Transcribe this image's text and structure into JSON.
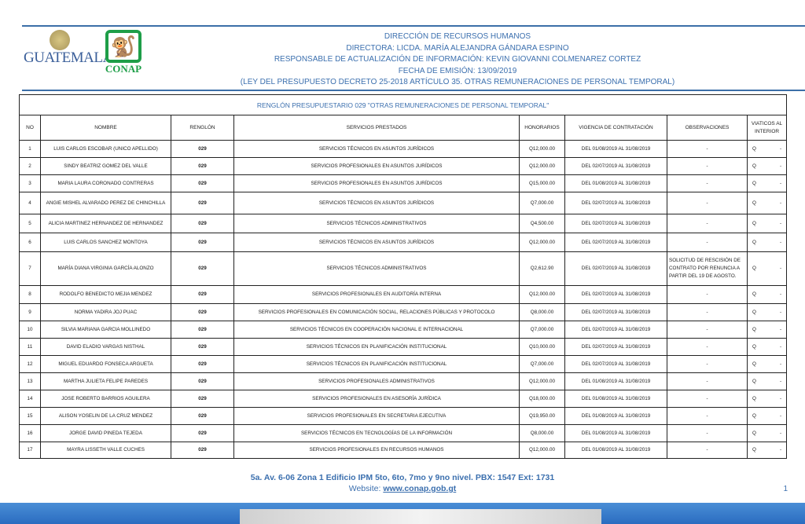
{
  "logos": {
    "left": "GUATEMALA",
    "right": "CONAP"
  },
  "header": {
    "line1": "DIRECCIÓN DE RECURSOS HUMANOS",
    "line2": "DIRECTORA: LICDA. MARÍA ALEJANDRA GÁNDARA ESPINO",
    "line3": "RESPONSABLE DE ACTUALIZACIÓN DE INFORMACIÓN: KEVIN GIOVANNI COLMENAREZ CORTEZ",
    "line4": "FECHA DE EMISIÓN: 13/09/2019",
    "line5": "(LEY DEL PRESUPUESTO DECRETO 25-2018 ARTÍCULO 35. OTRAS REMUNERACIONES DE PERSONAL TEMPORAL)"
  },
  "table": {
    "title": "RENGLÓN PRESUPUESTARIO 029 \"OTRAS REMUNERACIONES DE PERSONAL TEMPORAL\"",
    "columns": [
      "NO",
      "NOMBRE",
      "RENGLÓN",
      "SERVICIOS PRESTADOS",
      "HONORARIOS",
      "VIGENCIA DE CONTRATACIÓN",
      "OBSERVACIONES",
      "VIATICOS AL INTERIOR"
    ],
    "rows": [
      [
        "1",
        "LUIS CARLOS ESCOBAR (UNICO APELLIDO)",
        "029",
        "SERVICIOS TÉCNICOS EN ASUNTOS JURÍDICOS",
        "Q12,000.00",
        "DEL 01/08/2019 AL 31/08/2019",
        "-",
        "Q",
        "-"
      ],
      [
        "2",
        "SINDY BEATRIZ GOMEZ DEL VALLE",
        "029",
        "SERVICIOS PROFESIONALES EN ASUNTOS JURÍDICOS",
        "Q12,000.00",
        "DEL 02/07/2019 AL 31/08/2019",
        "-",
        "Q",
        "-"
      ],
      [
        "3",
        "MARIA LAURA CORONADO CONTRERAS",
        "029",
        "SERVICIOS PROFESIONALES EN ASUNTOS JURÍDICOS",
        "Q15,000.00",
        "DEL 01/08/2019 AL 31/08/2019",
        "-",
        "Q",
        "-"
      ],
      [
        "4",
        "ANGIE MISHEL ALVARADO PEREZ DE CHINCHILLA",
        "029",
        "SERVICIOS TÉCNICOS EN ASUNTOS JURÍDICOS",
        "Q7,000.00",
        "DEL 02/07/2019 AL 31/08/2019",
        "-",
        "Q",
        "-"
      ],
      [
        "5",
        "ALICIA MARTINEZ HERNANDEZ DE HERNANDEZ",
        "029",
        "SERVICIOS TÉCNICOS ADMINISTRATIVOS",
        "Q4,500.00",
        "DEL 02/07/2019 AL 31/08/2019",
        "-",
        "Q",
        "-"
      ],
      [
        "6",
        "LUIS CARLOS SANCHEZ MONTOYA",
        "029",
        "SERVICIOS TÉCNICOS EN ASUNTOS JURÍDICOS",
        "Q12,000.00",
        "DEL 02/07/2019 AL 31/08/2019",
        "-",
        "Q",
        "-"
      ],
      [
        "7",
        "MARÍA DIANA VIRGINIA GARCÍA ALONZO",
        "029",
        "SERVICIOS TÉCNICOS ADMINISTRATIVOS",
        "Q2,612.90",
        "DEL 02/07/2019 AL 31/08/2019",
        "SOLICITUD DE RESCISIÓN DE CONTRATO POR RENUNCIA A PARTIR DEL 19 DE AGOSTO.",
        "Q",
        "-"
      ],
      [
        "8",
        "RODOLFO BENEDICTO MEJIA MENDEZ",
        "029",
        "SERVICIOS PROFESIONALES EN AUDITORÍA INTERNA",
        "Q12,000.00",
        "DEL 02/07/2019 AL 31/08/2019",
        "-",
        "Q",
        "-"
      ],
      [
        "9",
        "NORMA YADIRA JOJ PUAC",
        "029",
        "SERVICIOS PROFESIONALES EN COMUNICACIÓN SOCIAL, RELACIONES PÚBLICAS Y PROTOCOLO",
        "Q8,000.00",
        "DEL 02/07/2019 AL 31/08/2019",
        "-",
        "Q",
        "-"
      ],
      [
        "10",
        "SILVIA MARIANA GARCIA MOLLINEDO",
        "029",
        "SERVICIOS TÉCNICOS EN COOPERACIÓN NACIONAL E INTERNACIONAL",
        "Q7,000.00",
        "DEL 02/07/2019 AL 31/08/2019",
        "-",
        "Q",
        "-"
      ],
      [
        "11",
        "DAVID ELADIO VARGAS NISTHAL",
        "029",
        "SERVICIOS TÉCNICOS EN PLANIFICACIÓN INSTITUCIONAL",
        "Q10,000.00",
        "DEL 02/07/2019 AL 31/08/2019",
        "-",
        "Q",
        "-"
      ],
      [
        "12",
        "MIGUEL EDUARDO FONSECA ARGUETA",
        "029",
        "SERVICIOS TÉCNICOS EN PLANIFICACIÓN INSTITUCIONAL",
        "Q7,000.00",
        "DEL 02/07/2019 AL 31/08/2019",
        "-",
        "Q",
        "-"
      ],
      [
        "13",
        "MARTHA JULIETA FELIPE PAREDES",
        "029",
        "SERVICIOS PROFESIONALES ADMINISTRATIVOS",
        "Q12,000.00",
        "DEL 01/08/2019 AL 31/08/2019",
        "-",
        "Q",
        "-"
      ],
      [
        "14",
        "JOSE ROBERTO BARRIOS AGUILERA",
        "029",
        "SERVICIOS PROFESIONALES EN ASESORÍA JURÍDICA",
        "Q18,000.00",
        "DEL 01/08/2019 AL 31/08/2019",
        "-",
        "Q",
        "-"
      ],
      [
        "15",
        "ALISON YOSELIN DE LA CRUZ MENDEZ",
        "029",
        "SERVICIOS PROFESIONALES EN SECRETARIA EJECUTIVA",
        "Q19,950.00",
        "DEL 01/08/2019 AL 31/08/2019",
        "-",
        "Q",
        "-"
      ],
      [
        "16",
        "JORGE DAVID PINEDA TEJEDA",
        "029",
        "SERVICIOS TÉCNICOS EN TECNOLOGÍAS DE LA INFORMACIÓN",
        "Q8,000.00",
        "DEL 01/08/2019 AL 31/08/2019",
        "-",
        "Q",
        "-"
      ],
      [
        "17",
        "MAYRA LISSETH VALLE CUCHES",
        "029",
        "SERVICIOS PROFESIONALES EN RECURSOS HUMANOS",
        "Q12,000.00",
        "DEL 01/08/2019 AL 31/08/2019",
        "-",
        "Q",
        "-"
      ]
    ]
  },
  "footer": {
    "address": "5a. Av. 6-06 Zona 1 Edificio IPM 5to, 6to, 7mo y 9no nivel. PBX: 1547 Ext: 1731",
    "website_label": "Website: ",
    "website": "www.conap.gob.gt",
    "page": "1"
  }
}
